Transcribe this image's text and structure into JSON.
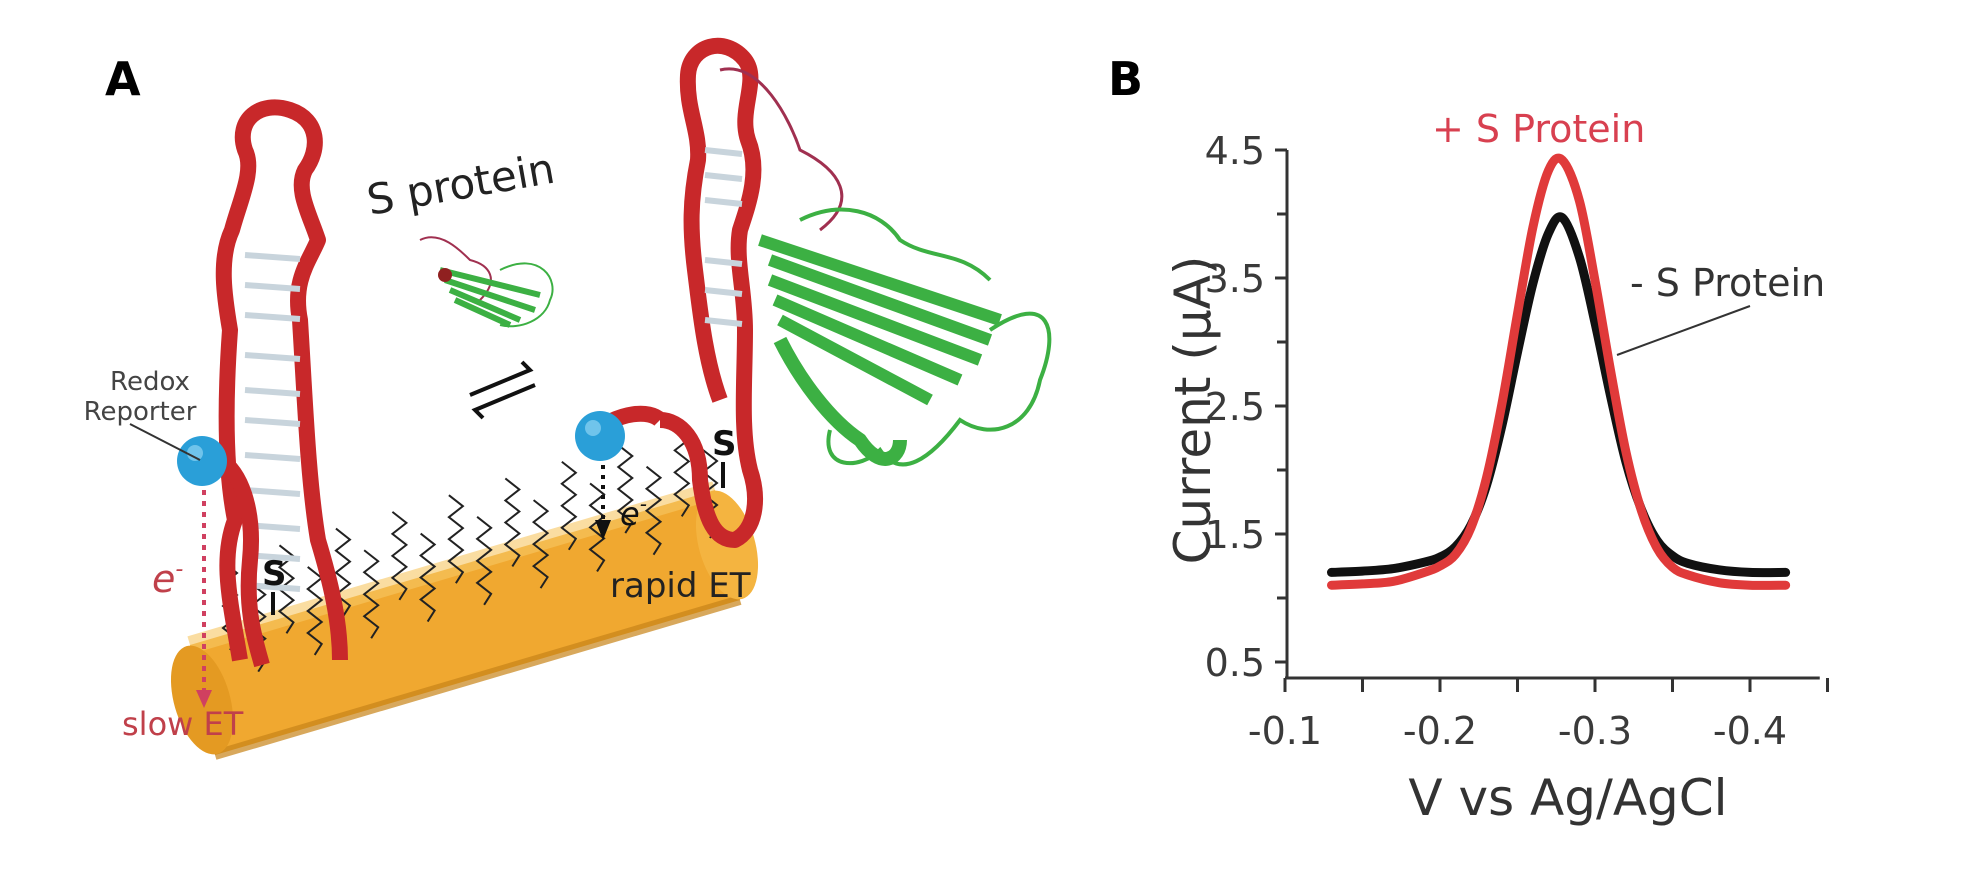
{
  "panel_a": {
    "label": "A",
    "s_protein_label": "S protein",
    "redox_reporter_line1": "Redox",
    "redox_reporter_line2": "Reporter",
    "electron_left": "e",
    "electron_right": "e",
    "electron_superscript": "-",
    "slow_et": "slow ET",
    "rapid_et": "rapid ET",
    "thiol_left": "S",
    "thiol_right": "S",
    "colors": {
      "aptamer": "#c8282a",
      "electrode": "#f0a830",
      "reporter": "#2a9fd8",
      "protein": "#3cb043",
      "slow_et": "#c0404a"
    }
  },
  "panel_b": {
    "label": "B"
  },
  "chart_data": {
    "type": "line",
    "title": "",
    "xlabel": "V vs Ag/AgCl",
    "ylabel": "Current (µA)",
    "xlim": [
      -0.1,
      -0.445
    ],
    "ylim": [
      0.375,
      4.5
    ],
    "x_ticks": [
      "-0.1",
      "-0.2",
      "-0.3",
      "-0.4"
    ],
    "x_tick_values": [
      -0.1,
      -0.2,
      -0.3,
      -0.4
    ],
    "x_minor_tick_values": [
      -0.15,
      -0.25,
      -0.35,
      -0.45
    ],
    "y_ticks": [
      "4.5",
      "3.5",
      "2.5",
      "1.5",
      "0.5"
    ],
    "y_tick_values": [
      4.5,
      3.5,
      2.5,
      1.5,
      0.5
    ],
    "y_minor_tick_values": [
      4.0,
      3.0,
      2.0,
      1.0
    ],
    "grid": false,
    "x": [
      -0.13,
      -0.15,
      -0.17,
      -0.19,
      -0.2,
      -0.21,
      -0.22,
      -0.23,
      -0.24,
      -0.25,
      -0.26,
      -0.27,
      -0.279,
      -0.29,
      -0.3,
      -0.31,
      -0.32,
      -0.33,
      -0.34,
      -0.35,
      -0.36,
      -0.38,
      -0.4,
      -0.423
    ],
    "series": [
      {
        "name": "- S Protein",
        "color": "#111111",
        "values": [
          1.2,
          1.21,
          1.23,
          1.28,
          1.32,
          1.4,
          1.57,
          1.88,
          2.35,
          2.92,
          3.46,
          3.85,
          3.97,
          3.66,
          3.15,
          2.58,
          2.06,
          1.69,
          1.45,
          1.33,
          1.27,
          1.22,
          1.2,
          1.2
        ]
      },
      {
        "name": "+ S Protein",
        "color": "#e03a3a",
        "values": [
          1.1,
          1.11,
          1.13,
          1.2,
          1.25,
          1.34,
          1.55,
          1.94,
          2.52,
          3.22,
          3.9,
          4.34,
          4.42,
          4.1,
          3.48,
          2.78,
          2.14,
          1.68,
          1.39,
          1.24,
          1.18,
          1.12,
          1.1,
          1.1
        ]
      }
    ],
    "annotations": [
      "+ S Protein",
      "- S Protein"
    ]
  }
}
